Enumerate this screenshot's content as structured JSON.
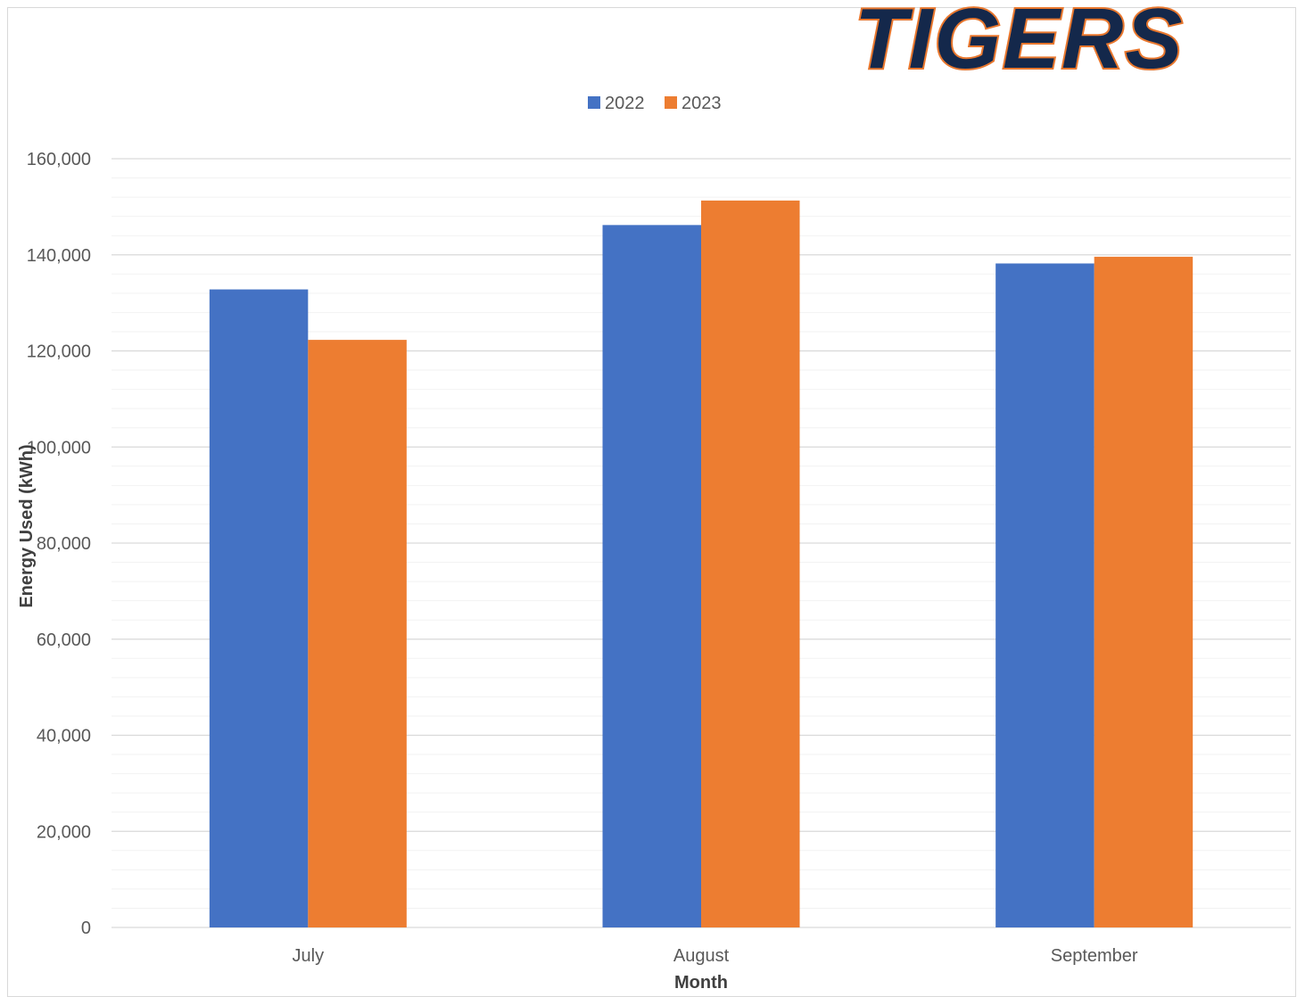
{
  "logo": {
    "text": "TIGERS",
    "color": "#14284b",
    "outline_color": "#e8772e"
  },
  "chart_data": {
    "type": "bar",
    "categories": [
      "July",
      "August",
      "September"
    ],
    "series": [
      {
        "name": "2022",
        "color": "#4472c4",
        "values": [
          132800,
          146200,
          138200
        ]
      },
      {
        "name": "2023",
        "color": "#ed7d31",
        "values": [
          122300,
          151300,
          139600
        ]
      }
    ],
    "title": "",
    "xlabel": "Month",
    "ylabel": "Energy Used (kWh)",
    "ylim": [
      0,
      160000
    ],
    "yticks": [
      0,
      20000,
      40000,
      60000,
      80000,
      100000,
      120000,
      140000,
      160000
    ],
    "ytick_labels": [
      "0",
      "20,000",
      "40,000",
      "60,000",
      "80,000",
      "100,000",
      "120,000",
      "140,000",
      "160,000"
    ],
    "minor_gridlines": true,
    "grid": true,
    "legend_position": "top"
  }
}
